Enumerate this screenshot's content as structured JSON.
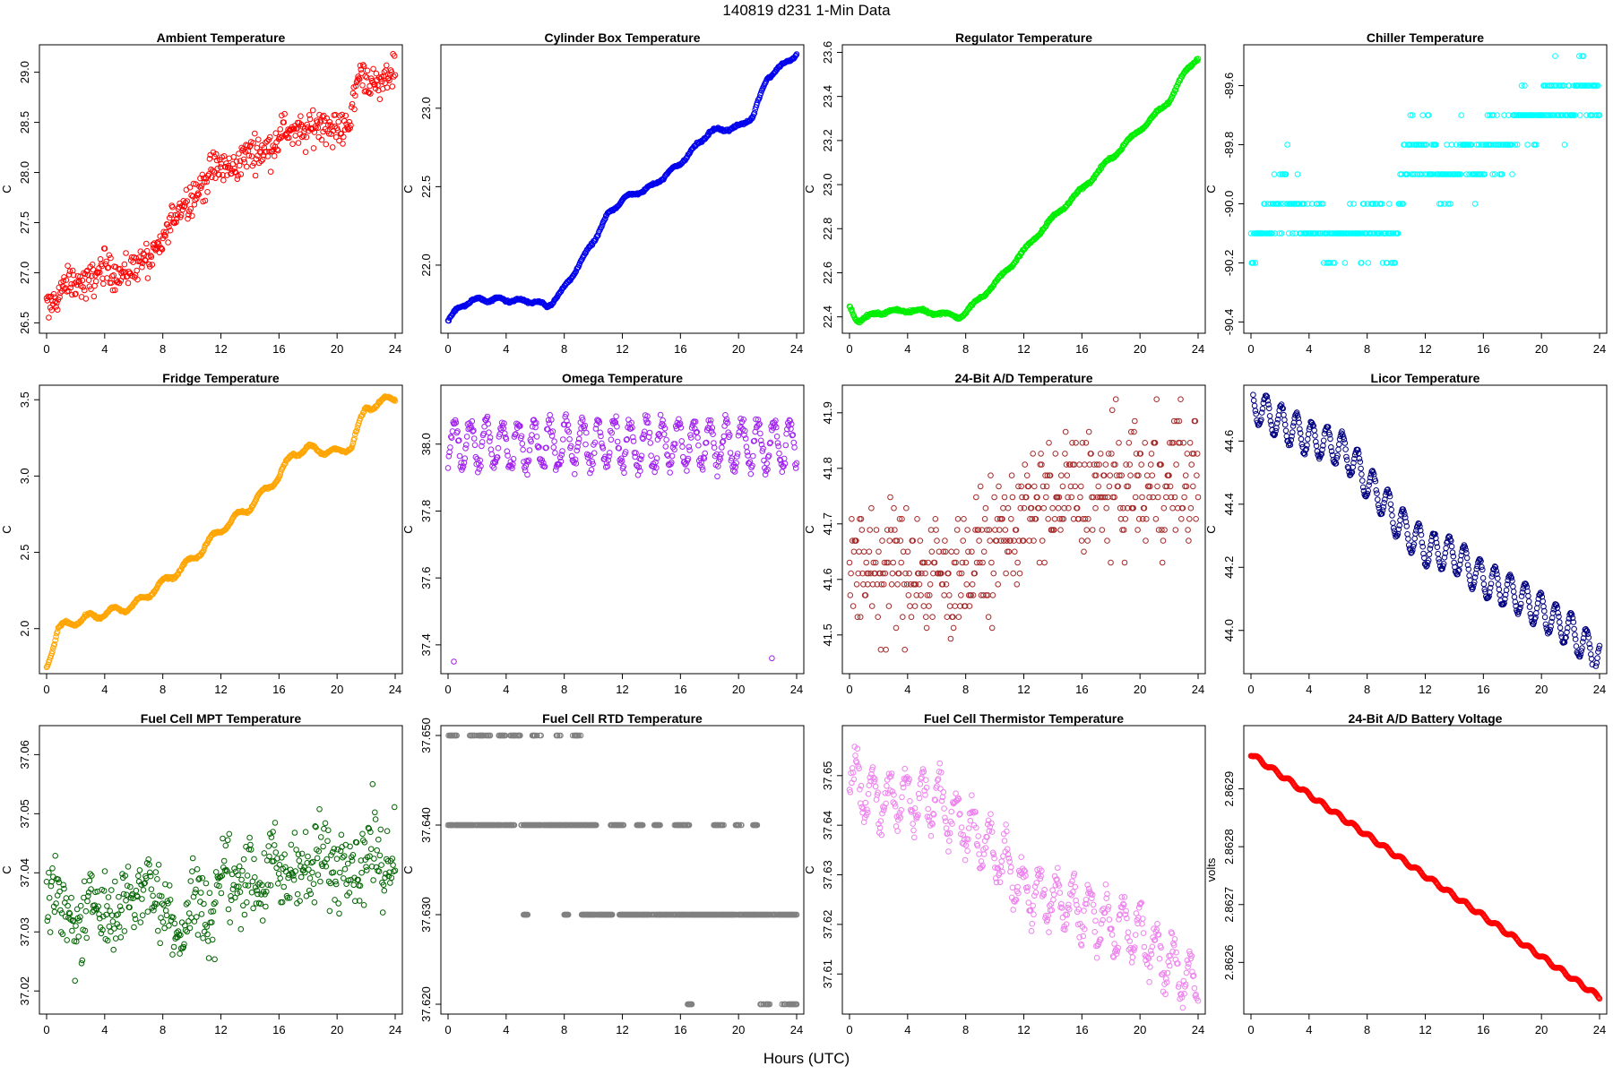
{
  "page": {
    "title": "140819   d231   1-Min Data",
    "xlabel": "Hours (UTC)"
  },
  "chart_data": [
    {
      "type": "scatter",
      "title": "Ambient Temperature",
      "ylabel": "C",
      "color": "#ff0000",
      "xlim": [
        0,
        24
      ],
      "xticks": [
        0,
        4,
        8,
        12,
        16,
        20,
        24
      ],
      "ylim": [
        26.45,
        29.22
      ],
      "yticks": [
        26.5,
        27.0,
        27.5,
        28.0,
        28.5,
        29.0
      ],
      "ytick_labels": [
        "26.5",
        "27.0",
        "27.5",
        "28.0",
        "28.5",
        "29.0"
      ],
      "trend": {
        "x": [
          0,
          2,
          4,
          6,
          7,
          8,
          10,
          12,
          14,
          16,
          18,
          20,
          21,
          21.5,
          23,
          24
        ],
        "y": [
          26.7,
          26.9,
          27.0,
          27.05,
          27.1,
          27.35,
          27.8,
          28.05,
          28.15,
          28.35,
          28.45,
          28.45,
          28.55,
          28.95,
          28.9,
          29.0
        ]
      },
      "noise": 0.12,
      "wiggle": 0.05,
      "period": 2.5
    },
    {
      "type": "scatter",
      "title": "Cylinder Box Temperature",
      "ylabel": "C",
      "color": "#0000ee",
      "xlim": [
        0,
        24
      ],
      "xticks": [
        0,
        4,
        8,
        12,
        16,
        20,
        24
      ],
      "ylim": [
        21.6,
        23.37
      ],
      "yticks": [
        22.0,
        22.5,
        23.0
      ],
      "ytick_labels": [
        "22.0",
        "22.5",
        "23.0"
      ],
      "trend": {
        "x": [
          0,
          1,
          2,
          3,
          4,
          5,
          6,
          6.8,
          8,
          9,
          10,
          11,
          12,
          14,
          16,
          18,
          20,
          21,
          22,
          23,
          24
        ],
        "y": [
          21.65,
          21.75,
          21.78,
          21.78,
          21.78,
          21.77,
          21.77,
          21.73,
          21.85,
          22.0,
          22.15,
          22.32,
          22.42,
          22.5,
          22.65,
          22.85,
          22.88,
          22.95,
          23.2,
          23.27,
          23.35
        ]
      },
      "noise": 0.005,
      "wiggle": 0.012,
      "period": 1.5
    },
    {
      "type": "scatter",
      "title": "Regulator Temperature",
      "ylabel": "C",
      "color": "#00ee00",
      "xlim": [
        0,
        24
      ],
      "xticks": [
        0,
        4,
        8,
        12,
        16,
        20,
        24
      ],
      "ylim": [
        22.35,
        23.61
      ],
      "yticks": [
        22.4,
        22.6,
        22.8,
        23.0,
        23.2,
        23.4,
        23.6
      ],
      "ytick_labels": [
        "22.4",
        "22.6",
        "22.8",
        "23.0",
        "23.2",
        "23.4",
        "23.6"
      ],
      "trend": {
        "x": [
          0,
          0.6,
          2,
          4,
          6,
          7.5,
          8,
          10,
          12,
          14,
          16,
          18,
          20,
          22,
          23,
          24
        ],
        "y": [
          22.45,
          22.38,
          22.42,
          22.43,
          22.42,
          22.4,
          22.42,
          22.55,
          22.7,
          22.85,
          22.98,
          23.12,
          23.25,
          23.38,
          23.5,
          23.58
        ]
      },
      "noise": 0.004,
      "wiggle": 0.008,
      "period": 1.8
    },
    {
      "type": "scatter",
      "title": "Chiller Temperature",
      "ylabel": "C",
      "color": "#00ffff",
      "xlim": [
        0,
        24
      ],
      "xticks": [
        0,
        4,
        8,
        12,
        16,
        20,
        24
      ],
      "ylim": [
        -90.42,
        -89.48
      ],
      "yticks": [
        -90.4,
        -90.2,
        -90.0,
        -89.8,
        -89.6
      ],
      "ytick_labels": [
        "-90.4",
        "-90.2",
        "-90.0",
        "-89.8",
        "-89.6"
      ],
      "trend": {
        "x": [
          0,
          1,
          2,
          3,
          4,
          5,
          6,
          8,
          10,
          11,
          12,
          13,
          14,
          16,
          18,
          20,
          22,
          24
        ],
        "y": [
          -90.2,
          -90.1,
          -89.95,
          -90.0,
          -90.05,
          -90.15,
          -90.1,
          -90.1,
          -90.05,
          -89.8,
          -89.8,
          -89.9,
          -89.85,
          -89.85,
          -89.75,
          -89.7,
          -89.65,
          -89.62
        ]
      },
      "noise": 0.07,
      "wiggle": 0.03,
      "period": 2.0,
      "quant": 0.1
    },
    {
      "type": "scatter",
      "title": "Fridge Temperature",
      "ylabel": "C",
      "color": "#ffa500",
      "xlim": [
        0,
        24
      ],
      "xticks": [
        0,
        4,
        8,
        12,
        16,
        20,
        24
      ],
      "ylim": [
        1.74,
        3.56
      ],
      "yticks": [
        2.0,
        2.5,
        3.0,
        3.5
      ],
      "ytick_labels": [
        "2.0",
        "2.5",
        "3.0",
        "3.5"
      ],
      "trend": {
        "x": [
          0,
          0.8,
          2,
          4,
          6,
          8,
          10,
          12,
          14,
          16,
          17,
          18,
          19,
          20,
          21,
          22,
          23,
          24
        ],
        "y": [
          1.75,
          2.0,
          2.05,
          2.1,
          2.15,
          2.3,
          2.45,
          2.65,
          2.8,
          3.0,
          3.15,
          3.18,
          3.17,
          3.15,
          3.2,
          3.45,
          3.48,
          3.52
        ]
      },
      "noise": 0.005,
      "wiggle": 0.025,
      "period": 1.7
    },
    {
      "type": "scatter",
      "title": "Omega Temperature",
      "ylabel": "C",
      "color": "#a020f0",
      "xlim": [
        0,
        24
      ],
      "xticks": [
        0,
        4,
        8,
        12,
        16,
        20,
        24
      ],
      "ylim": [
        37.33,
        38.16
      ],
      "yticks": [
        37.4,
        37.6,
        37.8,
        38.0
      ],
      "ytick_labels": [
        "37.4",
        "37.6",
        "37.8",
        "38.0"
      ],
      "trend": {
        "x": [
          0,
          24
        ],
        "y": [
          38.0,
          38.0
        ]
      },
      "noise": 0.02,
      "wiggle": 0.07,
      "period": 1.1,
      "outliers": [
        [
          0.4,
          37.35
        ],
        [
          22.3,
          37.36
        ]
      ]
    },
    {
      "type": "scatter",
      "title": "24-Bit A/D Temperature",
      "ylabel": "C",
      "color": "#a52a2a",
      "xlim": [
        0,
        24
      ],
      "xticks": [
        0,
        4,
        8,
        12,
        16,
        20,
        24
      ],
      "ylim": [
        41.44,
        41.94
      ],
      "yticks": [
        41.5,
        41.6,
        41.7,
        41.8,
        41.9
      ],
      "ytick_labels": [
        "41.5",
        "41.6",
        "41.7",
        "41.8",
        "41.9"
      ],
      "trend": {
        "x": [
          0,
          4,
          6,
          8,
          10,
          12,
          16,
          20,
          24
        ],
        "y": [
          41.62,
          41.62,
          41.6,
          41.62,
          41.66,
          41.72,
          41.76,
          41.77,
          41.79
        ]
      },
      "noise": 0.08,
      "wiggle": 0.02,
      "period": 1.5,
      "quant": 0.0196
    },
    {
      "type": "scatter",
      "title": "Licor Temperature",
      "ylabel": "C",
      "color": "#000080",
      "xlim": [
        0,
        24
      ],
      "xticks": [
        0,
        4,
        8,
        12,
        16,
        20,
        24
      ],
      "ylim": [
        43.88,
        44.76
      ],
      "yticks": [
        44.0,
        44.2,
        44.4,
        44.6
      ],
      "ytick_labels": [
        "44.0",
        "44.2",
        "44.4",
        "44.6"
      ],
      "trend": {
        "x": [
          0,
          2,
          4,
          6,
          7,
          8,
          9,
          10,
          12,
          14,
          16,
          18,
          20,
          22,
          23,
          24
        ],
        "y": [
          44.72,
          44.66,
          44.61,
          44.58,
          44.54,
          44.47,
          44.42,
          44.35,
          44.26,
          44.24,
          44.16,
          44.12,
          44.06,
          44.0,
          43.95,
          43.92
        ]
      },
      "noise": 0.004,
      "wiggle": 0.055,
      "period": 1.05
    },
    {
      "type": "scatter",
      "title": "Fuel Cell MPT Temperature",
      "ylabel": "C",
      "color": "#006400",
      "xlim": [
        0,
        24
      ],
      "xticks": [
        0,
        4,
        8,
        12,
        16,
        20,
        24
      ],
      "ylim": [
        37.017,
        37.064
      ],
      "yticks": [
        37.02,
        37.03,
        37.04,
        37.05,
        37.06
      ],
      "ytick_labels": [
        "37.02",
        "37.03",
        "37.04",
        "37.05",
        "37.06"
      ],
      "trend": {
        "x": [
          0,
          1,
          2,
          3,
          4,
          5,
          6,
          8,
          9,
          10,
          11,
          12,
          14,
          16,
          18,
          20,
          22,
          24
        ],
        "y": [
          37.036,
          37.036,
          37.028,
          37.036,
          37.034,
          37.033,
          37.038,
          37.036,
          37.029,
          37.036,
          37.032,
          37.039,
          37.039,
          37.04,
          37.041,
          37.042,
          37.043,
          37.043
        ]
      },
      "noise": 0.005,
      "wiggle": 0.002,
      "period": 1.7
    },
    {
      "type": "scatter",
      "title": "Fuel Cell RTD Temperature",
      "ylabel": "C",
      "color": "#808080",
      "xlim": [
        0,
        24
      ],
      "xticks": [
        0,
        4,
        8,
        12,
        16,
        20,
        24
      ],
      "ylim": [
        37.6195,
        37.6505
      ],
      "yticks": [
        37.62,
        37.63,
        37.64,
        37.65
      ],
      "ytick_labels": [
        "37.620",
        "37.630",
        "37.640",
        "37.650"
      ],
      "levels": [
        {
          "y": 37.65,
          "x": [
            [
              0,
              0.8
            ],
            [
              1.5,
              3.0
            ],
            [
              3.5,
              4.0
            ],
            [
              4.2,
              5.0
            ],
            [
              5.8,
              6.4
            ],
            [
              7.3,
              7.8
            ],
            [
              8.5,
              9.2
            ]
          ],
          "density": 0.6
        },
        {
          "y": 37.64,
          "x": [
            [
              0,
              4.6
            ],
            [
              5.0,
              10.2
            ],
            [
              11.2,
              12.1
            ],
            [
              13.0,
              13.4
            ],
            [
              14.2,
              14.6
            ],
            [
              15.6,
              16.6
            ],
            [
              18.3,
              19.0
            ],
            [
              19.8,
              20.2
            ],
            [
              21.0,
              21.3
            ]
          ],
          "density": 0.9
        },
        {
          "y": 37.63,
          "x": [
            [
              5.2,
              5.5
            ],
            [
              8.0,
              8.3
            ],
            [
              9.2,
              10.2
            ],
            [
              10.3,
              11.3
            ],
            [
              11.8,
              24
            ]
          ],
          "density": 0.95
        },
        {
          "y": 37.62,
          "x": [
            [
              16.5,
              16.8
            ],
            [
              21.5,
              22.2
            ],
            [
              23.0,
              24
            ]
          ],
          "density": 0.8
        }
      ]
    },
    {
      "type": "scatter",
      "title": "Fuel Cell Thermistor Temperature",
      "ylabel": "C",
      "color": "#ee82ee",
      "xlim": [
        0,
        24
      ],
      "xticks": [
        0,
        4,
        8,
        12,
        16,
        20,
        24
      ],
      "ylim": [
        37.603,
        37.659
      ],
      "yticks": [
        37.61,
        37.62,
        37.63,
        37.64,
        37.65
      ],
      "ytick_labels": [
        "37.61",
        "37.62",
        "37.63",
        "37.64",
        "37.65"
      ],
      "trend": {
        "x": [
          0,
          2,
          4,
          6,
          8,
          10,
          12,
          14,
          16,
          18,
          20,
          22,
          24
        ],
        "y": [
          37.65,
          37.645,
          37.645,
          37.645,
          37.64,
          37.635,
          37.627,
          37.625,
          37.623,
          37.62,
          37.618,
          37.612,
          37.608
        ]
      },
      "noise": 0.002,
      "wiggle": 0.005,
      "period": 1.15
    },
    {
      "type": "scatter",
      "title": "24-Bit A/D Battery Voltage",
      "ylabel": "volts",
      "color": "#ff0000",
      "xlim": [
        0,
        24
      ],
      "xticks": [
        0,
        4,
        8,
        12,
        16,
        20,
        24
      ],
      "ylim": [
        2.86252,
        2.863
      ],
      "yticks": [
        2.8626,
        2.8627,
        2.8628,
        2.8629
      ],
      "ytick_labels": [
        "2.8626",
        "2.8627",
        "2.8628",
        "2.8629"
      ],
      "trend": {
        "x": [
          0,
          24
        ],
        "y": [
          2.86296,
          2.86254
        ]
      },
      "noise": 3e-07,
      "wiggle": 3.5e-06,
      "period": 1.1
    }
  ]
}
